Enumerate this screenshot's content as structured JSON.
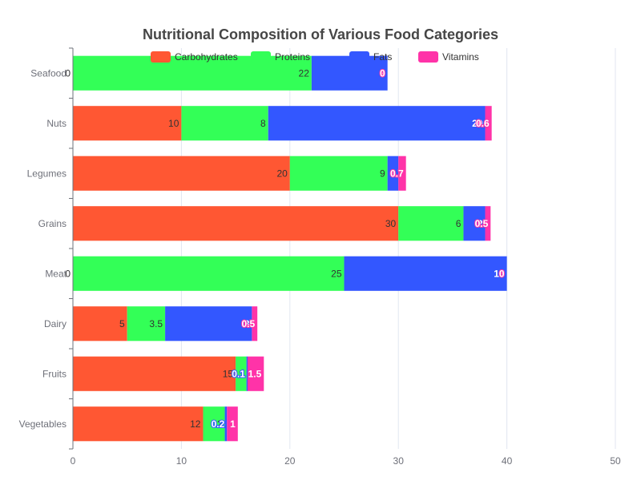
{
  "chart_data": {
    "type": "bar",
    "orientation": "horizontal",
    "stacked": true,
    "title": "Nutritional Composition of Various Food Categories",
    "categories": [
      "Vegetables",
      "Fruits",
      "Dairy",
      "Meat",
      "Grains",
      "Legumes",
      "Nuts",
      "Seafood"
    ],
    "series": [
      {
        "name": "Carbohydrates",
        "color": "#ff5733",
        "values": [
          12,
          15,
          5,
          0,
          30,
          20,
          10,
          0
        ],
        "value_labels": [
          "12",
          "15",
          "5",
          "0",
          "30",
          "20",
          "10",
          "0"
        ]
      },
      {
        "name": "Proteins",
        "color": "#33ff57",
        "values": [
          2,
          1,
          3.5,
          25,
          6,
          9,
          8,
          22
        ],
        "value_labels": [
          "2",
          "1",
          "3.5",
          "25",
          "6",
          "9",
          "8",
          "22"
        ]
      },
      {
        "name": "Fats",
        "color": "#3357ff",
        "values": [
          0.2,
          0.1,
          8,
          15,
          2,
          1,
          20,
          7
        ],
        "value_labels": [
          "0.2",
          "0.1",
          "8",
          "15",
          "2",
          "1",
          "20",
          "7"
        ]
      },
      {
        "name": "Vitamins",
        "color": "#ff33a8",
        "values": [
          1,
          1.5,
          0.5,
          0,
          0.5,
          0.7,
          0.6,
          0
        ],
        "value_labels": [
          "1",
          "1.5",
          "0.5",
          "0",
          "0.5",
          "0.7",
          "0.6",
          "0"
        ]
      }
    ],
    "xlim": [
      0,
      50
    ],
    "xticks": [
      0,
      10,
      20,
      30,
      40,
      50
    ],
    "xlabel": "",
    "ylabel": "",
    "grid": "vertical",
    "legend": "top-center"
  }
}
